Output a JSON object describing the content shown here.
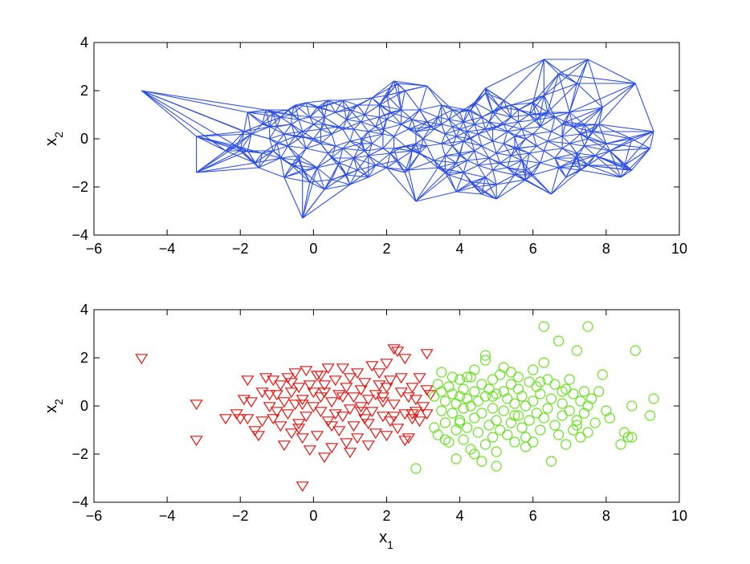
{
  "chart_data": [
    {
      "type": "network",
      "title": "",
      "xlabel": "",
      "ylabel": "x",
      "ylabel_sub": "2",
      "xlim": [
        -6,
        10
      ],
      "ylim": [
        -4,
        4
      ],
      "xticks": [
        "-6",
        "-4",
        "-2",
        "0",
        "2",
        "4",
        "6",
        "8",
        "10"
      ],
      "yticks": [
        "-4",
        "-2",
        "0",
        "2",
        "4"
      ],
      "grid": false,
      "legend": "none",
      "edge_color": "#2d4fe6",
      "description": "k-nearest-neighbour graph connecting all data points"
    },
    {
      "type": "scatter",
      "title": "",
      "xlabel": "x",
      "xlabel_sub": "1",
      "ylabel": "x",
      "ylabel_sub": "2",
      "xlim": [
        -6,
        10
      ],
      "ylim": [
        -4,
        4
      ],
      "xticks": [
        "-6",
        "-4",
        "-2",
        "0",
        "2",
        "4",
        "6",
        "8",
        "10"
      ],
      "yticks": [
        "-4",
        "-2",
        "0",
        "2",
        "4"
      ],
      "grid": false,
      "legend": "none",
      "series": [
        {
          "marker": "triangle-down",
          "color": "#e8140f",
          "x": [
            -4.7,
            -3.2,
            -3.2,
            -2.4,
            -2.1,
            -2.0,
            -1.9,
            -1.8,
            -1.7,
            -1.6,
            -1.5,
            -1.4,
            -1.4,
            -1.3,
            -1.2,
            -1.1,
            -1.1,
            -1.0,
            -1.0,
            -0.9,
            -0.8,
            -0.8,
            -0.7,
            -0.7,
            -0.6,
            -0.6,
            -0.5,
            -0.5,
            -0.4,
            -0.4,
            -0.3,
            -0.3,
            -0.3,
            -0.2,
            -0.2,
            -0.1,
            -0.1,
            0.0,
            0.0,
            0.1,
            0.1,
            0.2,
            0.2,
            0.3,
            0.3,
            0.4,
            0.4,
            0.5,
            0.5,
            0.6,
            0.6,
            0.7,
            0.7,
            0.8,
            0.8,
            0.9,
            0.9,
            1.0,
            1.0,
            1.1,
            1.1,
            1.2,
            1.2,
            1.3,
            1.3,
            1.4,
            1.4,
            1.5,
            1.5,
            1.6,
            1.6,
            1.7,
            1.7,
            1.8,
            1.8,
            1.9,
            1.9,
            2.0,
            2.0,
            2.1,
            2.1,
            2.2,
            2.2,
            2.3,
            2.3,
            2.4,
            2.5,
            2.5,
            2.6,
            2.6,
            2.7,
            2.7,
            2.8,
            2.8,
            2.9,
            2.9,
            3.0,
            3.1,
            3.1,
            3.2,
            -0.3,
            -1.8,
            -0.9,
            0.2,
            0.8,
            1.5,
            2.2,
            2.4,
            2.5,
            3.1,
            -1.2,
            -0.6,
            0.5,
            1.3,
            2.0,
            2.7,
            1.0,
            0.3,
            -0.4,
            1.9
          ],
          "y": [
            2.0,
            0.1,
            -1.4,
            -0.5,
            -0.3,
            -0.5,
            0.3,
            1.1,
            0.2,
            -1.0,
            -1.2,
            -0.6,
            0.6,
            1.2,
            0.0,
            -0.5,
            1.1,
            -0.2,
            0.5,
            -0.8,
            0.2,
            -1.6,
            1.2,
            -0.3,
            0.6,
            -1.1,
            0.1,
            1.4,
            -0.7,
            0.8,
            -3.3,
            -1.3,
            0.3,
            1.5,
            -0.4,
            0.9,
            -1.8,
            0.0,
            0.6,
            -1.2,
            1.3,
            -0.2,
            0.4,
            -2.1,
            0.9,
            -0.6,
            1.6,
            -1.7,
            0.2,
            -0.3,
            1.1,
            -1.0,
            0.5,
            1.6,
            -0.4,
            -1.5,
            0.8,
            -0.1,
            1.2,
            -0.8,
            0.4,
            1.4,
            -1.3,
            0.0,
            0.7,
            -0.5,
            1.0,
            -1.6,
            0.3,
            1.7,
            -0.2,
            0.5,
            -1.1,
            0.9,
            1.4,
            -0.4,
            0.2,
            -1.2,
            0.8,
            1.1,
            -0.6,
            2.4,
            0.1,
            2.3,
            -0.9,
            0.6,
            -0.3,
            2.0,
            0.4,
            -1.3,
            -0.5,
            0.8,
            0.3,
            -0.2,
            -0.6,
            1.2,
            0.0,
            -0.3,
            2.2,
            0.5,
            0.1,
            -0.5,
            0.9,
            1.3,
            0.4,
            -0.7,
            -0.4,
            1.2,
            -1.4,
            0.7,
            0.5,
            1.0,
            -0.8,
            -0.2,
            1.8,
            -0.3,
            -1.9,
            0.6,
            -0.9,
            0.4
          ]
        },
        {
          "marker": "circle",
          "color": "#66e31c",
          "x": [
            2.8,
            3.3,
            3.3,
            3.4,
            3.4,
            3.5,
            3.5,
            3.5,
            3.6,
            3.6,
            3.7,
            3.7,
            3.8,
            3.8,
            3.8,
            3.9,
            3.9,
            4.0,
            4.0,
            4.0,
            4.1,
            4.1,
            4.1,
            4.2,
            4.2,
            4.3,
            4.3,
            4.3,
            4.4,
            4.4,
            4.4,
            4.5,
            4.5,
            4.6,
            4.6,
            4.6,
            4.7,
            4.7,
            4.7,
            4.8,
            4.8,
            4.9,
            4.9,
            4.9,
            5.0,
            5.0,
            5.0,
            5.1,
            5.1,
            5.2,
            5.2,
            5.2,
            5.3,
            5.3,
            5.4,
            5.4,
            5.4,
            5.5,
            5.5,
            5.6,
            5.6,
            5.6,
            5.7,
            5.7,
            5.8,
            5.8,
            5.9,
            5.9,
            6.0,
            6.0,
            6.0,
            6.1,
            6.1,
            6.2,
            6.2,
            6.3,
            6.3,
            6.4,
            6.4,
            6.5,
            6.5,
            6.6,
            6.6,
            6.7,
            6.7,
            6.8,
            6.8,
            6.9,
            6.9,
            7.0,
            7.0,
            7.1,
            7.1,
            7.2,
            7.2,
            7.3,
            7.3,
            7.4,
            7.4,
            7.5,
            7.5,
            7.6,
            7.7,
            7.8,
            7.9,
            8.0,
            8.1,
            8.4,
            8.5,
            8.6,
            8.7,
            8.8,
            9.2,
            9.3,
            6.3,
            7.5,
            6.8,
            4.7,
            4.2,
            4.9,
            5.0,
            3.6,
            3.9,
            4.4,
            5.5,
            6.2,
            7.2,
            8.7,
            5.8,
            4.0
          ],
          "y": [
            -2.6,
            -0.9,
            0.4,
            -1.2,
            0.9,
            -0.2,
            0.6,
            1.4,
            -0.7,
            0.2,
            -1.5,
            0.8,
            -0.3,
            0.5,
            1.2,
            -1.0,
            0.1,
            -0.6,
            0.4,
            1.1,
            -1.4,
            -0.1,
            0.7,
            -0.9,
            0.3,
            -1.8,
            0.0,
            1.2,
            -0.5,
            0.6,
            1.5,
            -1.1,
            0.2,
            -2.3,
            -0.3,
            0.9,
            -1.6,
            0.4,
            1.9,
            -0.8,
            0.7,
            -1.3,
            -0.1,
            1.1,
            -2.5,
            -0.6,
            0.5,
            -1.0,
            1.3,
            -0.2,
            0.6,
            1.6,
            -1.2,
            0.3,
            -0.7,
            0.9,
            1.4,
            -1.5,
            0.1,
            -0.4,
            0.7,
            1.2,
            -0.9,
            0.4,
            -1.3,
            0.0,
            -0.6,
            1.0,
            -1.5,
            0.2,
            1.5,
            -0.3,
            0.8,
            -1.0,
            0.5,
            -0.5,
            3.3,
            -0.1,
            1.1,
            -2.3,
            0.3,
            -0.8,
            0.9,
            -1.2,
            2.7,
            0.1,
            -0.4,
            0.7,
            -1.6,
            -0.2,
            1.1,
            -1.0,
            0.5,
            -0.6,
            2.3,
            0.2,
            -1.3,
            -0.3,
            0.6,
            -1.1,
            3.3,
            0.3,
            -0.7,
            0.6,
            1.3,
            -0.2,
            -0.5,
            -1.6,
            -1.1,
            -1.3,
            -1.3,
            2.3,
            -0.4,
            0.3,
            1.8,
            0.0,
            0.6,
            2.1,
            1.2,
            0.4,
            -1.9,
            -1.4,
            -2.2,
            -2.0,
            -0.4,
            1.0,
            -0.8,
            0.0,
            -1.7,
            -0.7
          ]
        }
      ]
    }
  ]
}
